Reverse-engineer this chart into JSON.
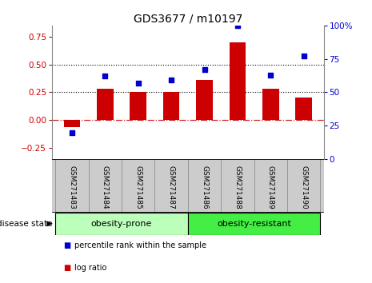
{
  "title": "GDS3677 / m10197",
  "samples": [
    "GSM271483",
    "GSM271484",
    "GSM271485",
    "GSM271487",
    "GSM271486",
    "GSM271488",
    "GSM271489",
    "GSM271490"
  ],
  "log_ratio": [
    -0.06,
    0.28,
    0.25,
    0.25,
    0.36,
    0.7,
    0.28,
    0.2
  ],
  "percentile_rank": [
    20,
    62,
    57,
    59,
    67,
    100,
    63,
    77
  ],
  "bar_color": "#cc0000",
  "dot_color": "#0000cc",
  "group1_label": "obesity-prone",
  "group2_label": "obesity-resistant",
  "group1_count": 4,
  "group2_count": 4,
  "group1_color": "#bbffbb",
  "group2_color": "#44ee44",
  "ylim_left": [
    -0.35,
    0.85
  ],
  "ylim_right": [
    0,
    100
  ],
  "yticks_left": [
    -0.25,
    0.0,
    0.25,
    0.5,
    0.75
  ],
  "yticks_right": [
    0,
    25,
    50,
    75,
    100
  ],
  "legend_log_ratio": "log ratio",
  "legend_percentile": "percentile rank within the sample",
  "disease_state_label": "disease state",
  "tick_color_left": "#cc0000",
  "tick_color_right": "#0000cc",
  "hline_zero_color": "#cc0000",
  "hline_dotted_color": "#000000",
  "xlabel_color": "#000000",
  "bg_color": "#ffffff",
  "label_bg": "#cccccc"
}
